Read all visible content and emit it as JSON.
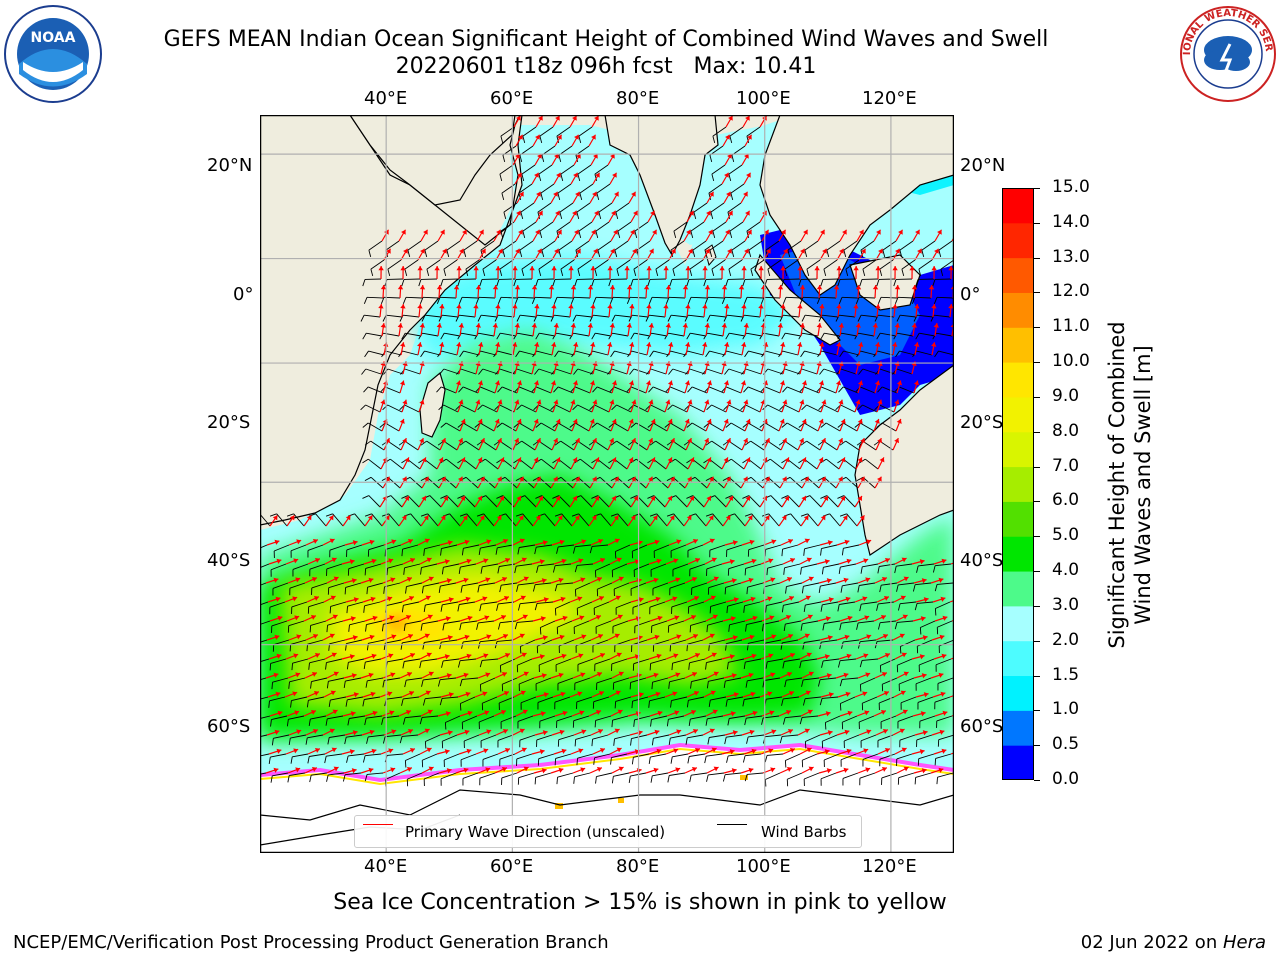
{
  "title": {
    "line1": "GEFS MEAN Indian Ocean Significant Height of Combined Wind Waves and Swell",
    "line2": "20220601 t18z 096h fcst   Max: 10.41"
  },
  "logos": {
    "left": {
      "name": "noaa-logo-icon",
      "text": "NOAA"
    },
    "right": {
      "name": "nws-logo-icon",
      "text": "NATIONAL WEATHER SERVICE"
    }
  },
  "map": {
    "lon_labels": [
      "40°E",
      "60°E",
      "80°E",
      "100°E",
      "120°E"
    ],
    "lat_labels": [
      "20°N",
      "0°",
      "20°S",
      "40°S",
      "60°S"
    ],
    "extent": {
      "lon": [
        20,
        130
      ],
      "lat": [
        -75,
        27
      ]
    },
    "colors": {
      "land": "#efedde",
      "grid": "#b0b0b0",
      "ice": "#ffffff",
      "ice_edge": "#ff55ff",
      "arrow": "#ff0000",
      "barb": "#000000"
    }
  },
  "legend": {
    "wave_label": "Primary Wave Direction (unscaled)",
    "barb_label": "Wind Barbs"
  },
  "colorbar": {
    "title": "Significant Height of Combined Wind Waves and Swell [m]",
    "title_line1": "Significant Height of Combined",
    "title_line2": "Wind Waves and Swell [m]",
    "ticks": [
      "0.0",
      "0.5",
      "1.0",
      "1.5",
      "2.0",
      "3.0",
      "4.0",
      "5.0",
      "6.0",
      "7.0",
      "8.0",
      "9.0",
      "10.0",
      "11.0",
      "12.0",
      "13.0",
      "14.0",
      "15.0"
    ],
    "colors": [
      "#0000ff",
      "#0077ff",
      "#00f2ff",
      "#4dfcff",
      "#a6ffff",
      "#4dfa8a",
      "#00e600",
      "#52e000",
      "#a6ed00",
      "#d9f500",
      "#f2f200",
      "#ffe600",
      "#ffbf00",
      "#ff8c00",
      "#ff5900",
      "#ff2600",
      "#ff0000"
    ]
  },
  "subnote": "Sea Ice Concentration > 15% is shown in pink to yellow",
  "footer": {
    "left": "NCEP/EMC/Verification Post Processing Product Generation Branch",
    "date": "02 Jun 2022 on ",
    "machine": "Hera"
  }
}
